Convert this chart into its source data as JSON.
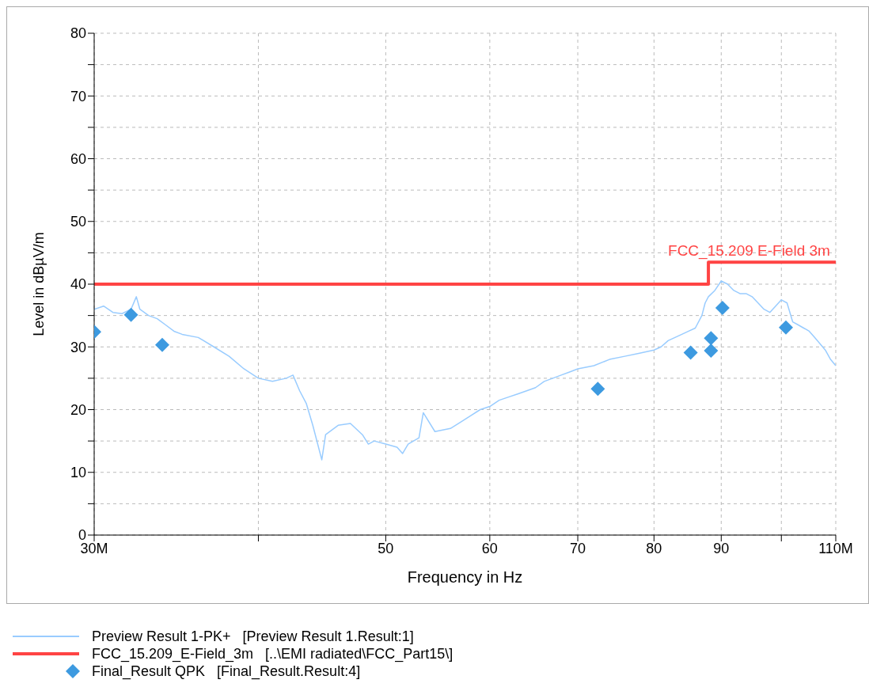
{
  "chart_data": {
    "type": "line",
    "xlabel": "Frequency in Hz",
    "ylabel": "Level in dBµV/m",
    "log": "x",
    "xlim": [
      30,
      110
    ],
    "ylim": [
      0,
      80
    ],
    "xticks": [
      {
        "value": 30,
        "label": "30M"
      },
      {
        "value": 40,
        "label": null
      },
      50,
      60,
      70,
      80,
      90,
      {
        "value": 100,
        "label": null
      },
      {
        "value": 110,
        "label": "110M"
      }
    ],
    "yticks": [
      0,
      {
        "value": 5,
        "label": null
      },
      10,
      {
        "value": 15,
        "label": null
      },
      20,
      {
        "value": 25,
        "label": null
      },
      30,
      {
        "value": 35,
        "label": null
      },
      40,
      {
        "value": 45,
        "label": null
      },
      50,
      {
        "value": 55,
        "label": null
      },
      60,
      {
        "value": 65,
        "label": null
      },
      70,
      {
        "value": 75,
        "label": null
      },
      80
    ],
    "grid": true,
    "legend": "bottom",
    "line_style": "solid",
    "annotations": [
      {
        "text": "FCC_15.209 E-Field 3m",
        "x": 94.5,
        "y": 43.5
      }
    ],
    "series": [
      {
        "name": "Preview Result 1-PK+   [Preview Result 1.Result:1]",
        "type": "line",
        "marker": "none",
        "color": "#99ccff",
        "x": [
          30,
          30.5,
          31,
          31.5,
          32,
          32.3,
          32.5,
          33,
          33.5,
          34,
          34.5,
          35,
          36,
          37,
          38,
          39,
          40,
          41,
          42,
          42.5,
          43,
          43.5,
          44,
          44.7,
          45,
          46,
          47,
          48,
          48.5,
          49,
          50,
          51,
          51.5,
          52,
          53,
          53.4,
          54.5,
          56,
          57,
          58,
          59,
          60,
          61,
          62,
          63,
          64,
          65,
          66,
          67,
          68,
          69,
          70,
          72,
          74,
          76,
          78,
          80,
          81,
          82,
          84,
          85,
          86,
          87,
          87.5,
          88,
          89,
          90,
          91,
          92,
          93,
          94,
          95,
          96,
          97,
          98,
          99,
          100,
          101,
          102,
          103,
          104,
          105,
          106,
          107,
          108,
          109,
          110
        ],
        "values": [
          36,
          36.5,
          35.5,
          35.3,
          36,
          38,
          36,
          35,
          34.5,
          33.5,
          32.5,
          32,
          31.5,
          30,
          28.5,
          26.5,
          25,
          24.5,
          25,
          25.5,
          23,
          21,
          17.5,
          12,
          16,
          17.5,
          17.8,
          16,
          14.5,
          15,
          14.5,
          14,
          13,
          14.5,
          15.5,
          19.5,
          16.5,
          17,
          18,
          19,
          20,
          20.5,
          21.5,
          22,
          22.5,
          23,
          23.5,
          24.5,
          25,
          25.5,
          26,
          26.5,
          27,
          28,
          28.5,
          29,
          29.5,
          30,
          31,
          32,
          32.5,
          33,
          35,
          37,
          38,
          39,
          40.5,
          40,
          39,
          38.5,
          38.5,
          38,
          37,
          36,
          35.5,
          36.5,
          37.5,
          37,
          34,
          33.5,
          33,
          32.5,
          31.5,
          30.5,
          29.5,
          28,
          27
        ]
      },
      {
        "name": "FCC_15.209_E-Field_3m   [..\\EMI radiated\\FCC_Part15\\]",
        "type": "step",
        "marker": "none",
        "color": "#ff4444",
        "x": [
          30,
          88,
          110
        ],
        "values": [
          40,
          43.5,
          43.5
        ]
      },
      {
        "name": "Final_Result QPK   [Final_Result.Result:4]",
        "type": "scatter",
        "marker": "diamond",
        "color": "#3d9ae0",
        "x": [
          30,
          32,
          33.8,
          72.5,
          85.3,
          88.4,
          88.4,
          90.2,
          100.8
        ],
        "values": [
          32.4,
          35.1,
          30.3,
          23.3,
          29.1,
          29.4,
          31.4,
          36.2,
          33.1
        ]
      }
    ]
  }
}
